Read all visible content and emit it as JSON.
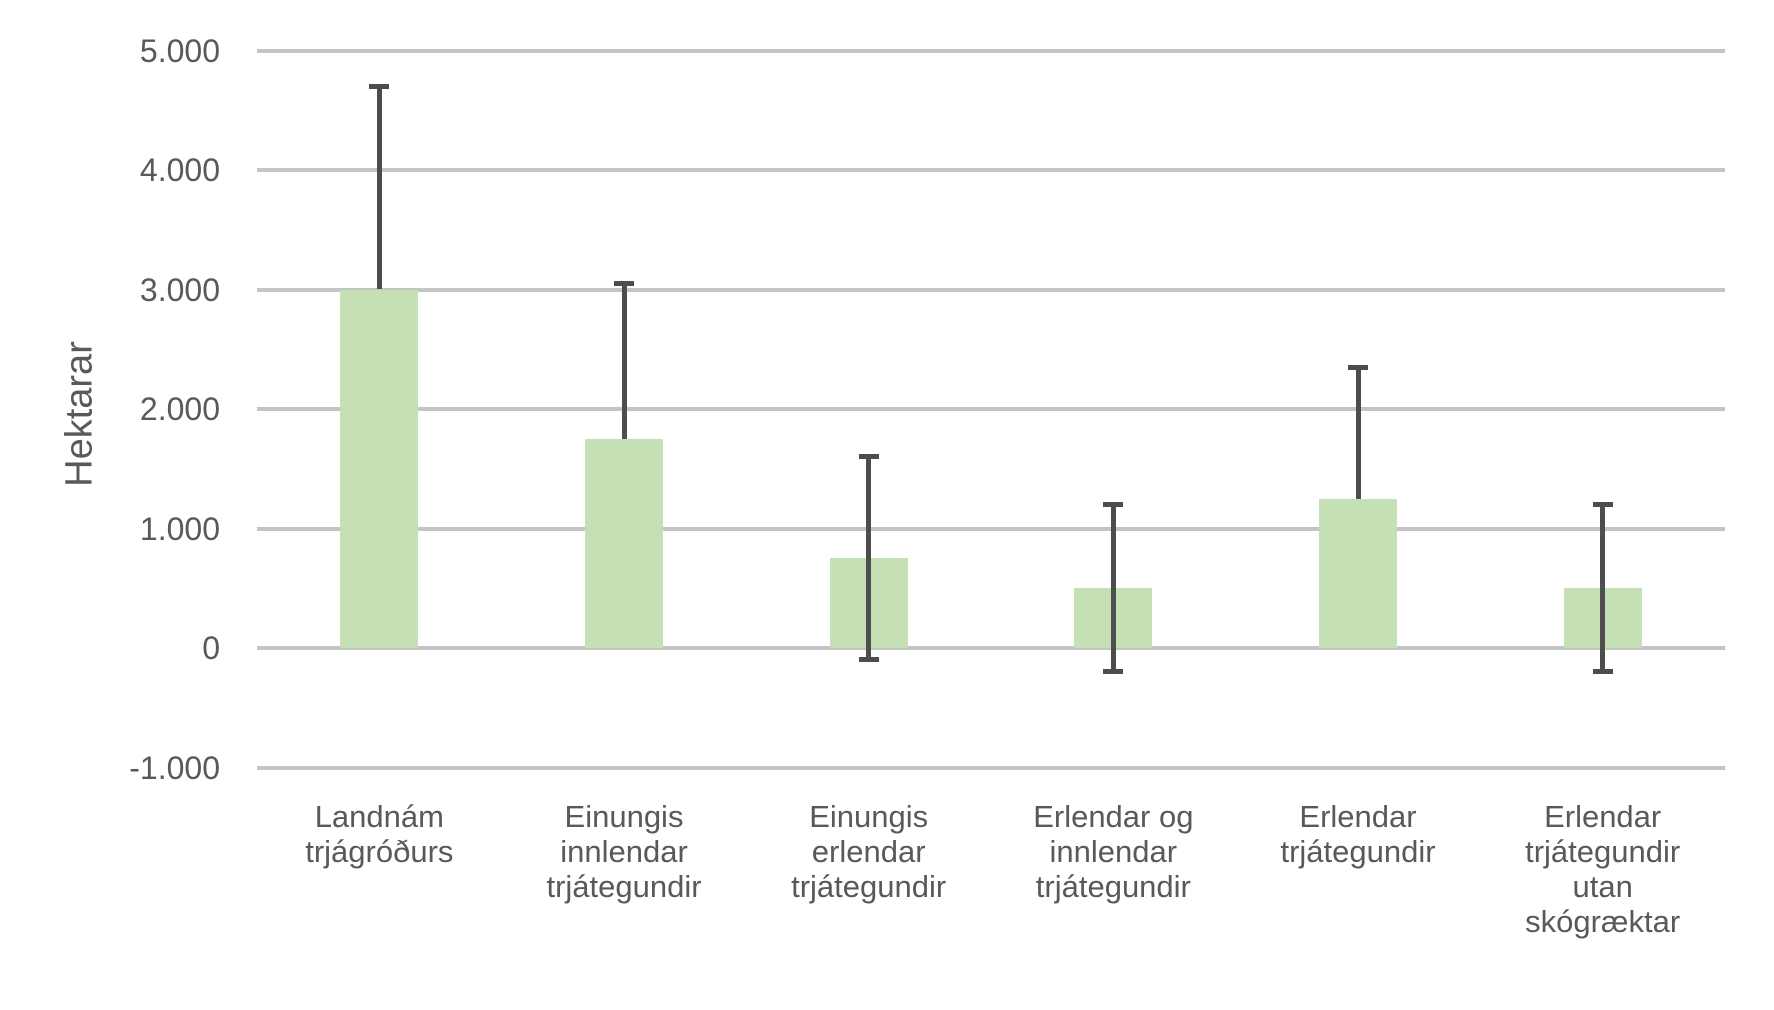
{
  "chart_data": {
    "type": "bar",
    "title": "",
    "xlabel": "",
    "ylabel": "Hektarar",
    "legend": "none",
    "grid": "horizontal",
    "categories": [
      "Landnám\ntrjágróðurs",
      "Einungis\ninnlendar\ntrjátegundir",
      "Einungis\nerlendar\ntrjátegundir",
      "Erlendar og\ninnlendar\ntrjátegundir",
      "Erlendar\ntrjátegundir",
      "Erlendar\ntrjátegundir\nutan\nskógræktar"
    ],
    "values": [
      3000,
      1750,
      750,
      500,
      1250,
      500
    ],
    "error_bars": {
      "high": [
        4700,
        3050,
        1600,
        1200,
        2350,
        1200
      ],
      "low": [
        null,
        null,
        -100,
        -200,
        null,
        -200
      ]
    },
    "y_axis": {
      "ticks": [
        "5.000",
        "4.000",
        "3.000",
        "2.000",
        "1.000",
        "0",
        "-1.000"
      ],
      "tick_values": [
        5000,
        4000,
        3000,
        2000,
        1000,
        0,
        -1000
      ],
      "min": -1000,
      "max": 5000
    },
    "colors": {
      "bar_fill": "#c5e0b4",
      "error_bar": "#4d4d4d",
      "gridline": "#c2c4c6",
      "text": "#595959",
      "background": "#ffffff"
    }
  }
}
